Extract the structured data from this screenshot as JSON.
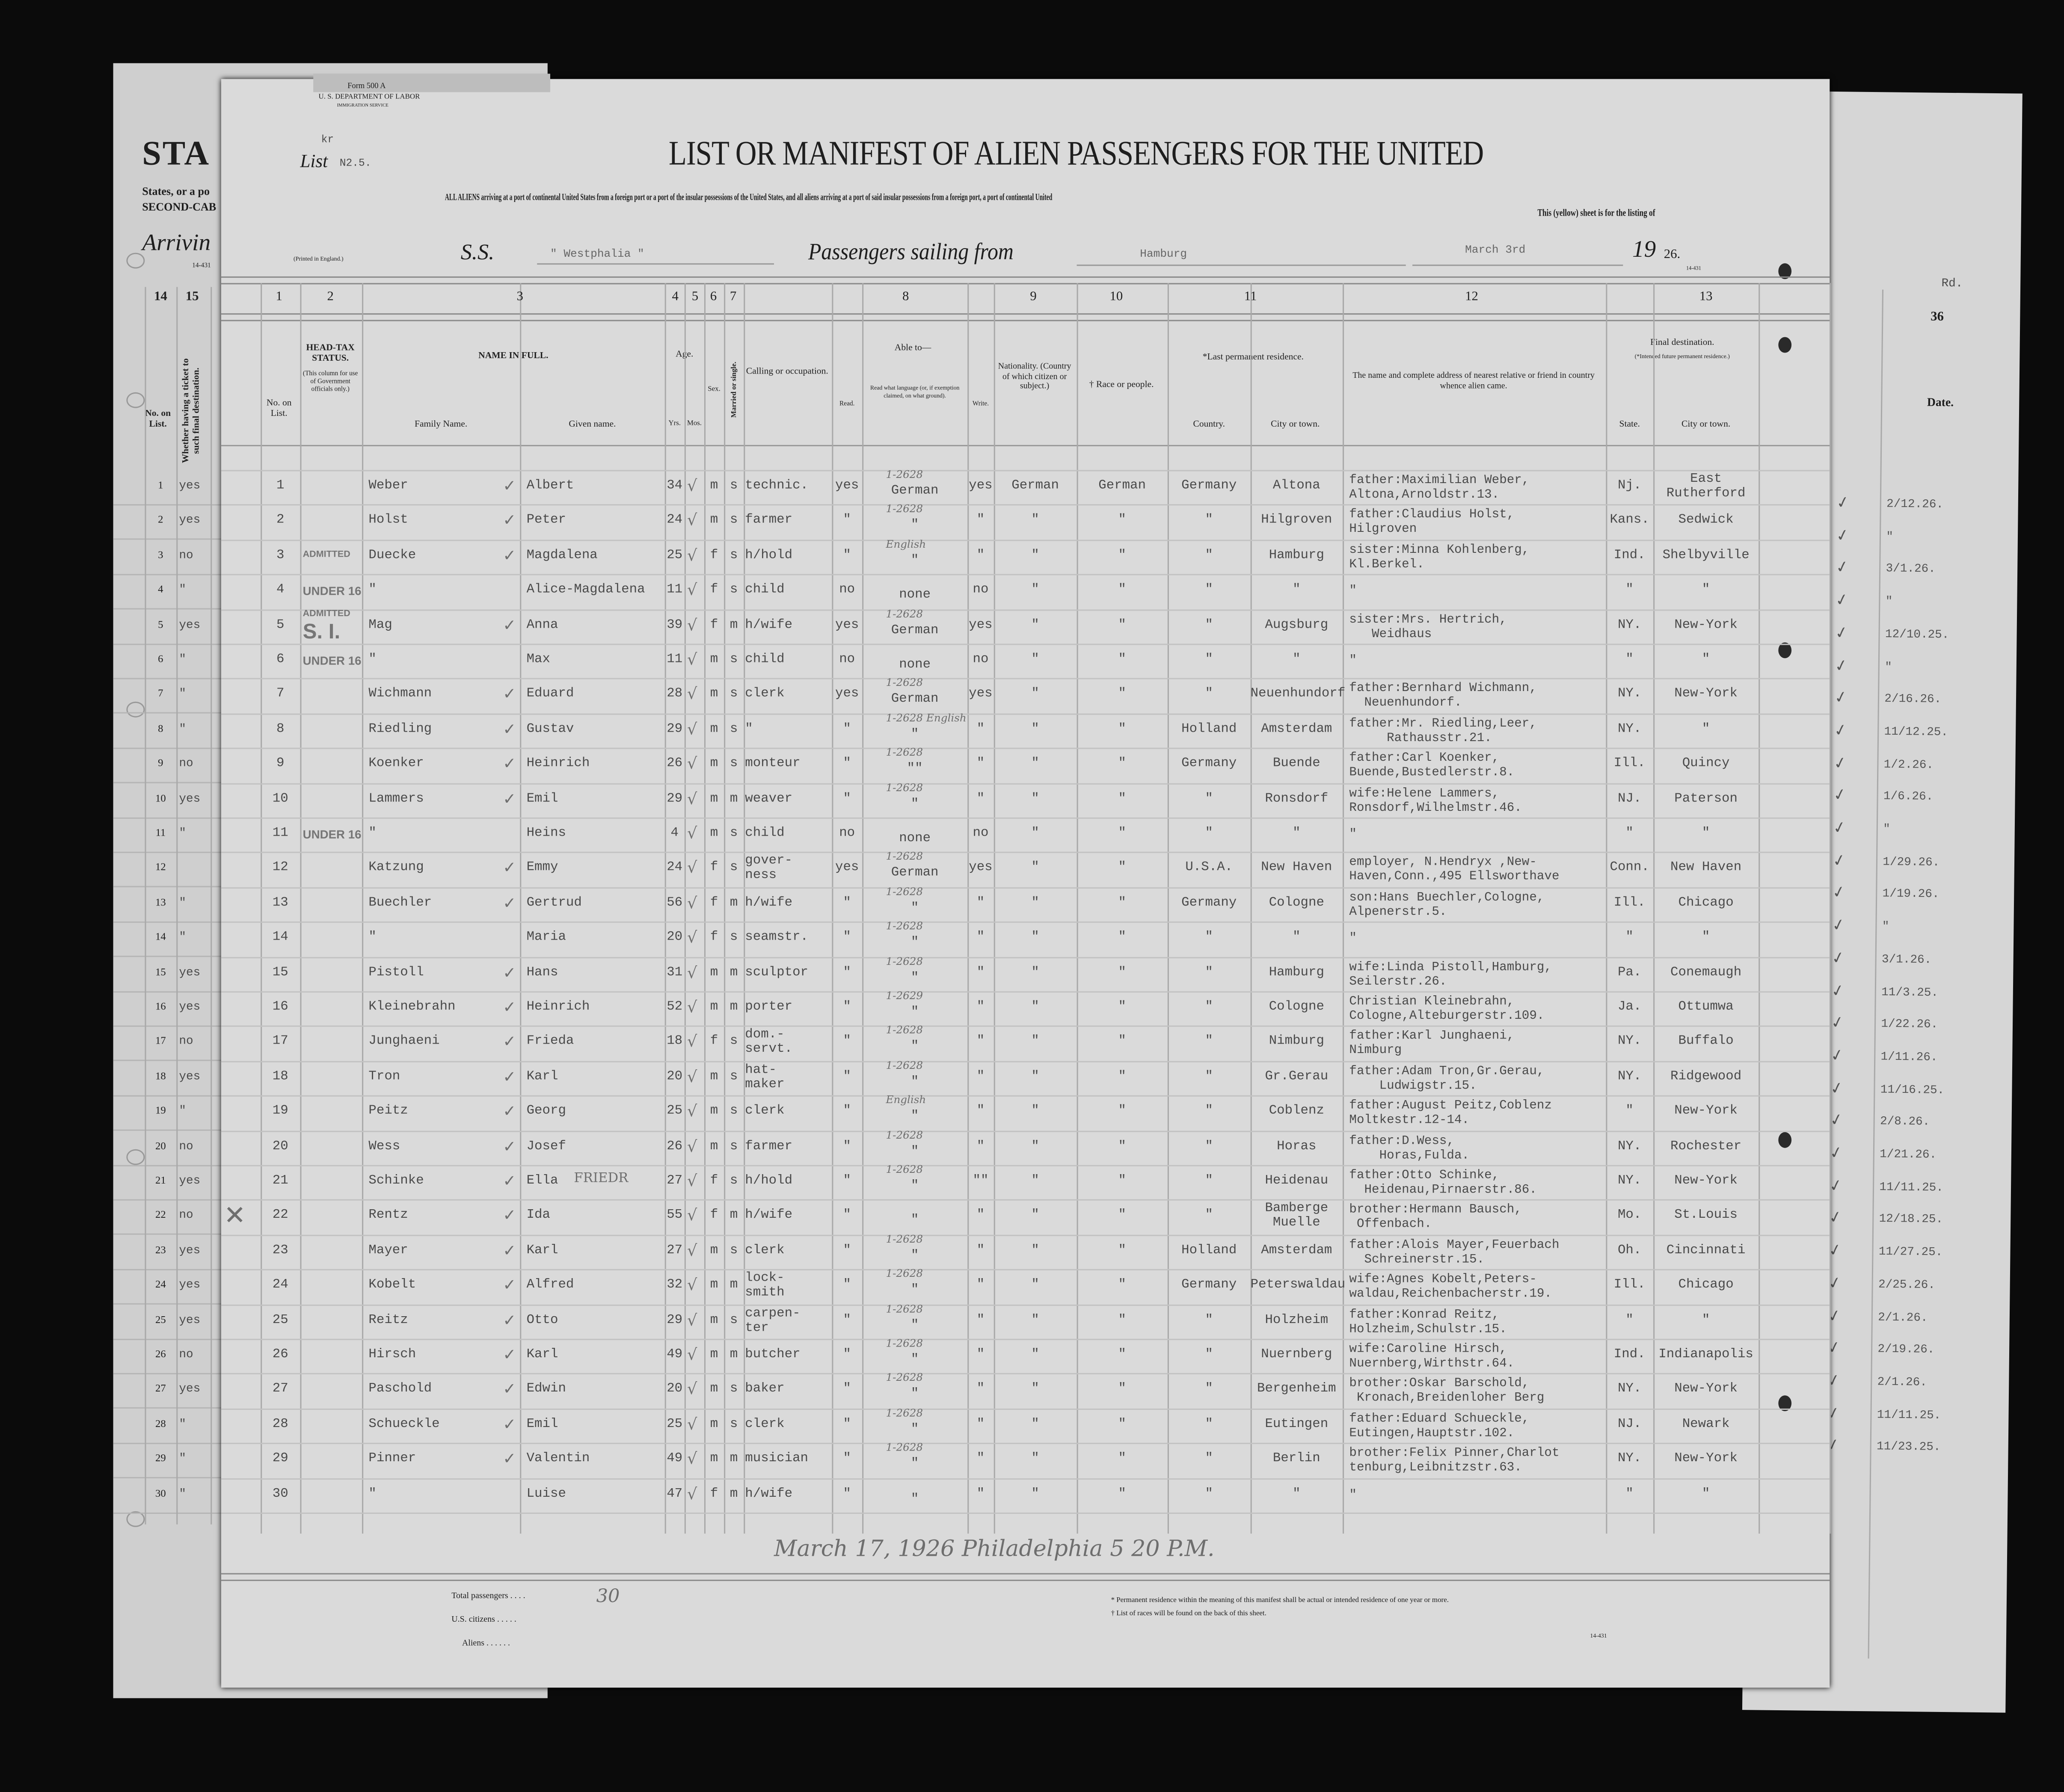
{
  "left_sheet": {
    "title_fragment": "STA",
    "line1": "States, or a po",
    "line2": "SECOND-CAB",
    "arriving": "Arrivin",
    "form_code": "14-431",
    "col14": "14",
    "col15": "15",
    "col14_label": "No. on List.",
    "col15_label": "Whether having a ticket to such final destination.",
    "ticket_values": [
      "yes",
      "yes",
      "no",
      "\"",
      "yes",
      "\"",
      "\"",
      "\"",
      "no",
      "yes",
      "\"",
      "",
      "\"",
      "\"",
      "yes",
      "yes",
      "no",
      "yes",
      "\"",
      "no",
      "yes",
      "no",
      "yes",
      "yes",
      "yes",
      "no",
      "yes",
      "\"",
      "\"",
      "\""
    ]
  },
  "right_sheet": {
    "rd": "Rd.",
    "col36": "36",
    "date_label": "Date.",
    "dates": [
      "2/12.26.",
      "\"",
      "3/1.26.",
      "\"",
      "12/10.25.",
      "\"",
      "2/16.26.",
      "11/12.25.",
      "1/2.26.",
      "1/6.26.",
      "\"",
      "1/29.26.",
      "1/19.26.",
      "\"",
      "3/1.26.",
      "11/3.25.",
      "1/22.26.",
      "1/11.26.",
      "11/16.25.",
      "2/8.26.",
      "1/21.26.",
      "11/11.25.",
      "12/18.25.",
      "11/27.25.",
      "2/25.26.",
      "2/1.26.",
      "2/19.26.",
      "2/1.26.",
      "11/11.25.",
      "11/23.25."
    ]
  },
  "header": {
    "form": "Form 500 A",
    "department": "U. S. DEPARTMENT OF LABOR",
    "service": "IMMIGRATION SERVICE",
    "kr": "kr",
    "list_label": "List",
    "list_no": "N2.5.",
    "title": "LIST OR MANIFEST OF ALIEN PASSENGERS FOR THE UNITED",
    "instruction": "ALL ALIENS arriving at a port of continental United States from a foreign port or a port of the insular possessions of the United States, and all aliens arriving at a port of said insular possessions from a foreign port, a port of continental United",
    "yellow_sheet": "This (yellow) sheet is for the listing of",
    "printed": "(Printed in England.)",
    "ss_label": "S.S.",
    "ship": "\" Westphalia \"",
    "sailing_label": "Passengers sailing from",
    "port": "Hamburg",
    "date": "March 3rd",
    "year_prefix": "19",
    "year_suffix": "26.",
    "form_code": "14-431"
  },
  "columns": {
    "numbers": [
      "1",
      "2",
      "3",
      "4",
      "5",
      "6",
      "7",
      "8",
      "9",
      "10",
      "11",
      "12",
      "13"
    ],
    "no_on_list": "No. on List.",
    "head_tax": "HEAD-TAX STATUS.",
    "head_tax_note": "(This column for use of Government officials only.)",
    "name_in_full": "NAME IN FULL.",
    "family_name": "Family Name.",
    "given_name": "Given name.",
    "age": "Age.",
    "yrs": "Yrs.",
    "mos": "Mos.",
    "sex": "Sex.",
    "married": "Married or single.",
    "calling": "Calling or occupation.",
    "able_to": "Able to—",
    "read": "Read.",
    "read_language": "Read what language (or, if exemption claimed, on what ground).",
    "write": "Write.",
    "nationality": "Nationality. (Country of which citizen or subject.)",
    "race": "† Race or people.",
    "last_residence": "*Last permanent residence.",
    "country": "Country.",
    "city_town": "City or town.",
    "relative": "The name and complete address of nearest relative or friend in country whence alien came.",
    "final_destination": "Final destination.",
    "final_note": "(*Intended future permanent residence.)",
    "state": "State.",
    "dest_city": "City or town."
  },
  "rows": [
    {
      "no": "1",
      "family": "Weber",
      "given": "Albert",
      "age": "34",
      "sex": "m",
      "marital": "s",
      "occupation": "technic.",
      "read": "yes",
      "language": "German",
      "write": "yes",
      "nationality": "German",
      "race": "German",
      "country": "Germany",
      "city": "Altona",
      "relative": "father:Maximilian Weber,\nAltona,Arnoldstr.13.",
      "state": "Nj.",
      "dest_city": "East\nRutherford",
      "note": "1-2628"
    },
    {
      "no": "2",
      "family": "Holst",
      "given": "Peter",
      "age": "24",
      "sex": "m",
      "marital": "s",
      "occupation": "farmer",
      "read": "\"",
      "language": "\"",
      "write": "\"",
      "nationality": "\"",
      "race": "\"",
      "country": "\"",
      "city": "Hilgroven",
      "relative": "father:Claudius Holst,\nHilgroven",
      "state": "Kans.",
      "dest_city": "Sedwick",
      "note": "1-2628"
    },
    {
      "no": "3",
      "family": "Duecke",
      "given": "Magdalena",
      "age": "25",
      "sex": "f",
      "marital": "s",
      "occupation": "h/hold",
      "read": "\"",
      "language": "\"",
      "write": "\"",
      "nationality": "\"",
      "race": "\"",
      "country": "\"",
      "city": "Hamburg",
      "relative": "sister:Minna Kohlenberg,\nKl.Berkel.",
      "state": "Ind.",
      "dest_city": "Shelbyville",
      "note": "English"
    },
    {
      "no": "4",
      "family": "\"",
      "given": "Alice-Magdalena",
      "age": "11",
      "sex": "f",
      "marital": "s",
      "occupation": "child",
      "read": "no",
      "language": "none",
      "write": "no",
      "nationality": "\"",
      "race": "\"",
      "country": "\"",
      "city": "\"",
      "relative": "\"",
      "state": "\"",
      "dest_city": "\"",
      "note": ""
    },
    {
      "no": "5",
      "family": "Mag",
      "given": "Anna",
      "age": "39",
      "sex": "f",
      "marital": "m",
      "occupation": "h/wife",
      "read": "yes",
      "language": "German",
      "write": "yes",
      "nationality": "\"",
      "race": "\"",
      "country": "\"",
      "city": "Augsburg",
      "relative": "sister:Mrs. Hertrich,\n   Weidhaus",
      "state": "NY.",
      "dest_city": "New-York",
      "note": "1-2628"
    },
    {
      "no": "6",
      "family": "\"",
      "given": "Max",
      "age": "11",
      "sex": "m",
      "marital": "s",
      "occupation": "child",
      "read": "no",
      "language": "none",
      "write": "no",
      "nationality": "\"",
      "race": "\"",
      "country": "\"",
      "city": "\"",
      "relative": "\"",
      "state": "\"",
      "dest_city": "\"",
      "note": ""
    },
    {
      "no": "7",
      "family": "Wichmann",
      "given": "Eduard",
      "age": "28",
      "sex": "m",
      "marital": "s",
      "occupation": "clerk",
      "read": "yes",
      "language": "German",
      "write": "yes",
      "nationality": "\"",
      "race": "\"",
      "country": "\"",
      "city": "Neuenhundorf",
      "relative": "father:Bernhard Wichmann,\n  Neuenhundorf.",
      "state": "NY.",
      "dest_city": "New-York",
      "note": "1-2628"
    },
    {
      "no": "8",
      "family": "Riedling",
      "given": "Gustav",
      "age": "29",
      "sex": "m",
      "marital": "s",
      "occupation": "\"",
      "read": "\"",
      "language": "\"",
      "write": "\"",
      "nationality": "\"",
      "race": "\"",
      "country": "Holland",
      "city": "Amsterdam",
      "relative": "father:Mr. Riedling,Leer,\n     Rathausstr.21.",
      "state": "NY.",
      "dest_city": "\"",
      "note": "1-2628 English"
    },
    {
      "no": "9",
      "family": "Koenker",
      "given": "Heinrich",
      "age": "26",
      "sex": "m",
      "marital": "s",
      "occupation": "monteur",
      "read": "\"",
      "language": "\"\"",
      "write": "\"",
      "nationality": "\"",
      "race": "\"",
      "country": "Germany",
      "city": "Buende",
      "relative": "father:Carl Koenker,\nBuende,Bustedlerstr.8.",
      "state": "Ill.",
      "dest_city": "Quincy",
      "note": "1-2628"
    },
    {
      "no": "10",
      "family": "Lammers",
      "given": "Emil",
      "age": "29",
      "sex": "m",
      "marital": "m",
      "occupation": "weaver",
      "read": "\"",
      "language": "\"",
      "write": "\"",
      "nationality": "\"",
      "race": "\"",
      "country": "\"",
      "city": "Ronsdorf",
      "relative": "wife:Helene Lammers,\nRonsdorf,Wilhelmstr.46.",
      "state": "NJ.",
      "dest_city": "Paterson",
      "note": "1-2628"
    },
    {
      "no": "11",
      "family": "\"",
      "given": "Heins",
      "age": "4",
      "sex": "m",
      "marital": "s",
      "occupation": "child",
      "read": "no",
      "language": "none",
      "write": "no",
      "nationality": "\"",
      "race": "\"",
      "country": "\"",
      "city": "\"",
      "relative": "\"",
      "state": "\"",
      "dest_city": "\"",
      "note": ""
    },
    {
      "no": "12",
      "family": "Katzung",
      "given": "Emmy",
      "age": "24",
      "sex": "f",
      "marital": "s",
      "occupation": "gover-\nness",
      "read": "yes",
      "language": "German",
      "write": "yes",
      "nationality": "\"",
      "race": "\"",
      "country": "U.S.A.",
      "city": "New Haven",
      "relative": "employer, N.Hendryx ,New-\nHaven,Conn.,495 Ellsworthave",
      "state": "Conn.",
      "dest_city": "New Haven",
      "note": "1-2628"
    },
    {
      "no": "13",
      "family": "Buechler",
      "given": "Gertrud",
      "age": "56",
      "sex": "f",
      "marital": "m",
      "occupation": "h/wife",
      "read": "\"",
      "language": "\"",
      "write": "\"",
      "nationality": "\"",
      "race": "\"",
      "country": "Germany",
      "city": "Cologne",
      "relative": "son:Hans Buechler,Cologne,\nAlpenerstr.5.",
      "state": "Ill.",
      "dest_city": "Chicago",
      "note": "1-2628"
    },
    {
      "no": "14",
      "family": "\"",
      "given": "Maria",
      "age": "20",
      "sex": "f",
      "marital": "s",
      "occupation": "seamstr.",
      "read": "\"",
      "language": "\"",
      "write": "\"",
      "nationality": "\"",
      "race": "\"",
      "country": "\"",
      "city": "\"",
      "relative": "\"",
      "state": "\"",
      "dest_city": "\"",
      "note": "1-2628"
    },
    {
      "no": "15",
      "family": "Pistoll",
      "given": "Hans",
      "age": "31",
      "sex": "m",
      "marital": "m",
      "occupation": "sculptor",
      "read": "\"",
      "language": "\"",
      "write": "\"",
      "nationality": "\"",
      "race": "\"",
      "country": "\"",
      "city": "Hamburg",
      "relative": "wife:Linda Pistoll,Hamburg,\nSeilerstr.26.",
      "state": "Pa.",
      "dest_city": "Conemaugh",
      "note": "1-2628"
    },
    {
      "no": "16",
      "family": "Kleinebrahn",
      "given": "Heinrich",
      "age": "52",
      "sex": "m",
      "marital": "m",
      "occupation": "porter",
      "read": "\"",
      "language": "\"",
      "write": "\"",
      "nationality": "\"",
      "race": "\"",
      "country": "\"",
      "city": "Cologne",
      "relative": "Christian Kleinebrahn,\nCologne,Alteburgerstr.109.",
      "state": "Ja.",
      "dest_city": "Ottumwa",
      "note": "1-2629"
    },
    {
      "no": "17",
      "family": "Junghaeni",
      "given": "Frieda",
      "age": "18",
      "sex": "f",
      "marital": "s",
      "occupation": "dom.-\nservt.",
      "read": "\"",
      "language": "\"",
      "write": "\"",
      "nationality": "\"",
      "race": "\"",
      "country": "\"",
      "city": "Nimburg",
      "relative": "father:Karl Junghaeni,\nNimburg",
      "state": "NY.",
      "dest_city": "Buffalo",
      "note": "1-2628"
    },
    {
      "no": "18",
      "family": "Tron",
      "given": "Karl",
      "age": "20",
      "sex": "m",
      "marital": "s",
      "occupation": "hat-\nmaker",
      "read": "\"",
      "language": "\"",
      "write": "\"",
      "nationality": "\"",
      "race": "\"",
      "country": "\"",
      "city": "Gr.Gerau",
      "relative": "father:Adam Tron,Gr.Gerau,\n    Ludwigstr.15.",
      "state": "NY.",
      "dest_city": "Ridgewood",
      "note": "1-2628"
    },
    {
      "no": "19",
      "family": "Peitz",
      "given": "Georg",
      "age": "25",
      "sex": "m",
      "marital": "s",
      "occupation": "clerk",
      "read": "\"",
      "language": "\"",
      "write": "\"",
      "nationality": "\"",
      "race": "\"",
      "country": "\"",
      "city": "Coblenz",
      "relative": "father:August Peitz,Coblenz\nMoltkestr.12-14.",
      "state": "\"",
      "dest_city": "New-York",
      "note": "English"
    },
    {
      "no": "20",
      "family": "Wess",
      "given": "Josef",
      "age": "26",
      "sex": "m",
      "marital": "s",
      "occupation": "farmer",
      "read": "\"",
      "language": "\"",
      "write": "\"",
      "nationality": "\"",
      "race": "\"",
      "country": "\"",
      "city": "Horas",
      "relative": "father:D.Wess,\n    Horas,Fulda.",
      "state": "NY.",
      "dest_city": "Rochester",
      "note": "1-2628"
    },
    {
      "no": "21",
      "family": "Schinke",
      "given": "Ella",
      "age": "27",
      "sex": "f",
      "marital": "s",
      "occupation": "h/hold",
      "read": "\"",
      "language": "\"",
      "write": "\"\"",
      "nationality": "\"",
      "race": "\"",
      "country": "\"",
      "city": "Heidenau",
      "relative": "father:Otto Schinke,\n  Heidenau,Pirnaerstr.86.",
      "state": "NY.",
      "dest_city": "New-York",
      "note": "1-2628"
    },
    {
      "no": "22",
      "family": "Rentz",
      "given": "Ida",
      "age": "55",
      "sex": "f",
      "marital": "m",
      "occupation": "h/wife",
      "read": "\"",
      "language": "\"",
      "write": "\"",
      "nationality": "\"",
      "race": "\"",
      "country": "\"",
      "city": "Bamberge\nMuelle",
      "relative": "brother:Hermann Bausch,\n Offenbach.",
      "state": "Mo.",
      "dest_city": "St.Louis",
      "note": ""
    },
    {
      "no": "23",
      "family": "Mayer",
      "given": "Karl",
      "age": "27",
      "sex": "m",
      "marital": "s",
      "occupation": "clerk",
      "read": "\"",
      "language": "\"",
      "write": "\"",
      "nationality": "\"",
      "race": "\"",
      "country": "Holland",
      "city": "Amsterdam",
      "relative": "father:Alois Mayer,Feuerbach\n  Schreinerstr.15.",
      "state": "Oh.",
      "dest_city": "Cincinnati",
      "note": "1-2628"
    },
    {
      "no": "24",
      "family": "Kobelt",
      "given": "Alfred",
      "age": "32",
      "sex": "m",
      "marital": "m",
      "occupation": "lock-\nsmith",
      "read": "\"",
      "language": "\"",
      "write": "\"",
      "nationality": "\"",
      "race": "\"",
      "country": "Germany",
      "city": "Peterswaldau",
      "relative": "wife:Agnes Kobelt,Peters-\nwaldau,Reichenbacherstr.19.",
      "state": "Ill.",
      "dest_city": "Chicago",
      "note": "1-2628"
    },
    {
      "no": "25",
      "family": "Reitz",
      "given": "Otto",
      "age": "29",
      "sex": "m",
      "marital": "s",
      "occupation": "carpen-\nter",
      "read": "\"",
      "language": "\"",
      "write": "\"",
      "nationality": "\"",
      "race": "\"",
      "country": "\"",
      "city": "Holzheim",
      "relative": "father:Konrad Reitz,\nHolzheim,Schulstr.15.",
      "state": "\"",
      "dest_city": "\"",
      "note": "1-2628"
    },
    {
      "no": "26",
      "family": "Hirsch",
      "given": "Karl",
      "age": "49",
      "sex": "m",
      "marital": "m",
      "occupation": "butcher",
      "read": "\"",
      "language": "\"",
      "write": "\"",
      "nationality": "\"",
      "race": "\"",
      "country": "\"",
      "city": "Nuernberg",
      "relative": "wife:Caroline Hirsch,\nNuernberg,Wirthstr.64.",
      "state": "Ind.",
      "dest_city": "Indianapolis",
      "note": "1-2628"
    },
    {
      "no": "27",
      "family": "Paschold",
      "given": "Edwin",
      "age": "20",
      "sex": "m",
      "marital": "s",
      "occupation": "baker",
      "read": "\"",
      "language": "\"",
      "write": "\"",
      "nationality": "\"",
      "race": "\"",
      "country": "\"",
      "city": "Bergenheim",
      "relative": "brother:Oskar Barschold,\n Kronach,Breidenloher Berg",
      "state": "NY.",
      "dest_city": "New-York",
      "note": "1-2628"
    },
    {
      "no": "28",
      "family": "Schueckle",
      "given": "Emil",
      "age": "25",
      "sex": "m",
      "marital": "s",
      "occupation": "clerk",
      "read": "\"",
      "language": "\"",
      "write": "\"",
      "nationality": "\"",
      "race": "\"",
      "country": "\"",
      "city": "Eutingen",
      "relative": "father:Eduard Schueckle,\nEutingen,Hauptstr.102.",
      "state": "NJ.",
      "dest_city": "Newark",
      "note": "1-2628"
    },
    {
      "no": "29",
      "family": "Pinner",
      "given": "Valentin",
      "age": "49",
      "sex": "m",
      "marital": "m",
      "occupation": "musician",
      "read": "\"",
      "language": "\"",
      "write": "\"",
      "nationality": "\"",
      "race": "\"",
      "country": "\"",
      "city": "Berlin",
      "relative": "brother:Felix Pinner,Charlot\ntenburg,Leibnitzstr.63.",
      "state": "NY.",
      "dest_city": "New-York",
      "note": "1-2628"
    },
    {
      "no": "30",
      "family": "\"",
      "given": "Luise",
      "age": "47",
      "sex": "f",
      "marital": "m",
      "occupation": "h/wife",
      "read": "\"",
      "language": "\"",
      "write": "\"",
      "nationality": "\"",
      "race": "\"",
      "country": "\"",
      "city": "\"",
      "relative": "\"",
      "state": "\"",
      "dest_city": "\"",
      "note": ""
    }
  ],
  "annotations": {
    "stamp_admitted": "ADMITTED",
    "stamp_under16": "UNDER 16",
    "stamp_si": "S. I.",
    "friedr": "FRIEDR",
    "handwritten_footer": "March 17, 1926  Philadelphia 5 20 P.M."
  },
  "footer": {
    "total_passengers": "Total passengers . . . .",
    "us_citizens": "U.S. citizens . . . . .",
    "aliens": "Aliens . . . . . .",
    "total_value": "30",
    "footnote1": "* Permanent residence within the meaning of this manifest shall be actual or intended residence of one year or more.",
    "footnote2": "† List of races will be found on the back of this sheet.",
    "form_code": "14-431"
  }
}
